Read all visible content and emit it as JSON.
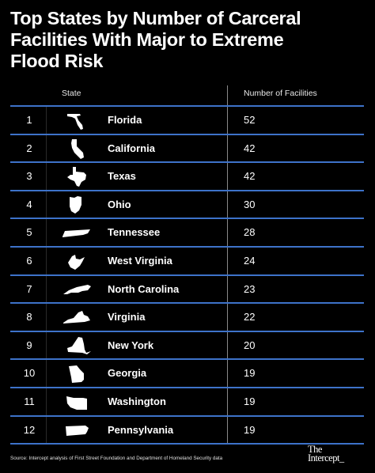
{
  "title": [
    "Top States by Number of Carceral",
    "Facilities With Major to Extreme",
    "Flood Risk"
  ],
  "headers": {
    "state": "State",
    "count": "Number of Facilities"
  },
  "source": "Source: Intercept analysis of First Street Foundation and Department of Homeland Security data",
  "logo": [
    "The",
    "Intercept_"
  ],
  "colors": {
    "background": "#000000",
    "divider": "#3d72c9",
    "text": "#ffffff"
  },
  "chart_data": {
    "type": "table",
    "columns": [
      "",
      "State",
      "Number of Facilities"
    ],
    "rows": [
      {
        "rank": "1",
        "state": "Florida",
        "count": 52,
        "icon": "florida-shape"
      },
      {
        "rank": "2",
        "state": "California",
        "count": 42,
        "icon": "california-shape"
      },
      {
        "rank": "3",
        "state": "Texas",
        "count": 42,
        "icon": "texas-shape"
      },
      {
        "rank": "4",
        "state": "Ohio",
        "count": 30,
        "icon": "ohio-shape"
      },
      {
        "rank": "5",
        "state": "Tennessee",
        "count": 28,
        "icon": "tennessee-shape"
      },
      {
        "rank": "6",
        "state": "West Virginia",
        "count": 24,
        "icon": "west-virginia-shape"
      },
      {
        "rank": "7",
        "state": "North Carolina",
        "count": 23,
        "icon": "north-carolina-shape"
      },
      {
        "rank": "8",
        "state": "Virginia",
        "count": 22,
        "icon": "virginia-shape"
      },
      {
        "rank": "9",
        "state": "New York",
        "count": 20,
        "icon": "new-york-shape"
      },
      {
        "rank": "10",
        "state": "Georgia",
        "count": 19,
        "icon": "georgia-shape"
      },
      {
        "rank": "11",
        "state": "Washington",
        "count": 19,
        "icon": "washington-shape"
      },
      {
        "rank": "12",
        "state": "Pennsylvania",
        "count": 19,
        "icon": "pennsylvania-shape"
      }
    ]
  }
}
